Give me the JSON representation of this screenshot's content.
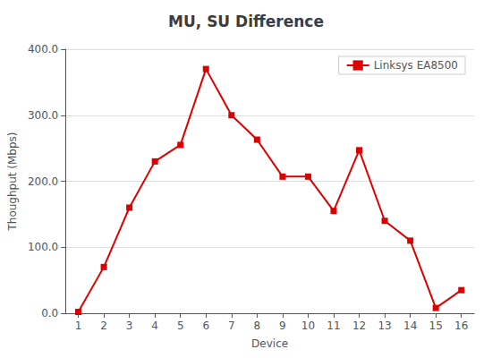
{
  "chart_data": {
    "type": "line",
    "title": "MU, SU Difference",
    "xlabel": "Device",
    "ylabel": "Thoughput (Mbps)",
    "x": [
      1,
      2,
      3,
      4,
      5,
      6,
      7,
      8,
      9,
      10,
      11,
      12,
      13,
      14,
      15,
      16
    ],
    "series": [
      {
        "name": "Linksys EA8500",
        "color": "#dd0000",
        "marker": "square",
        "values": [
          2,
          70,
          160,
          230,
          255,
          370,
          300,
          263,
          207,
          207,
          155,
          247,
          140,
          110,
          8,
          35
        ]
      }
    ],
    "xlim": [
      0.5,
      16.5
    ],
    "xticks": [
      1,
      2,
      3,
      4,
      5,
      6,
      7,
      8,
      9,
      10,
      11,
      12,
      13,
      14,
      15,
      16
    ],
    "ylim": [
      0,
      400
    ],
    "yticks": [
      {
        "value": 0,
        "label": "0.0"
      },
      {
        "value": 100,
        "label": "100.0"
      },
      {
        "value": 200,
        "label": "200.0"
      },
      {
        "value": 300,
        "label": "300.0"
      },
      {
        "value": 400,
        "label": "400.0"
      }
    ],
    "grid": true,
    "legend": "upper right"
  }
}
